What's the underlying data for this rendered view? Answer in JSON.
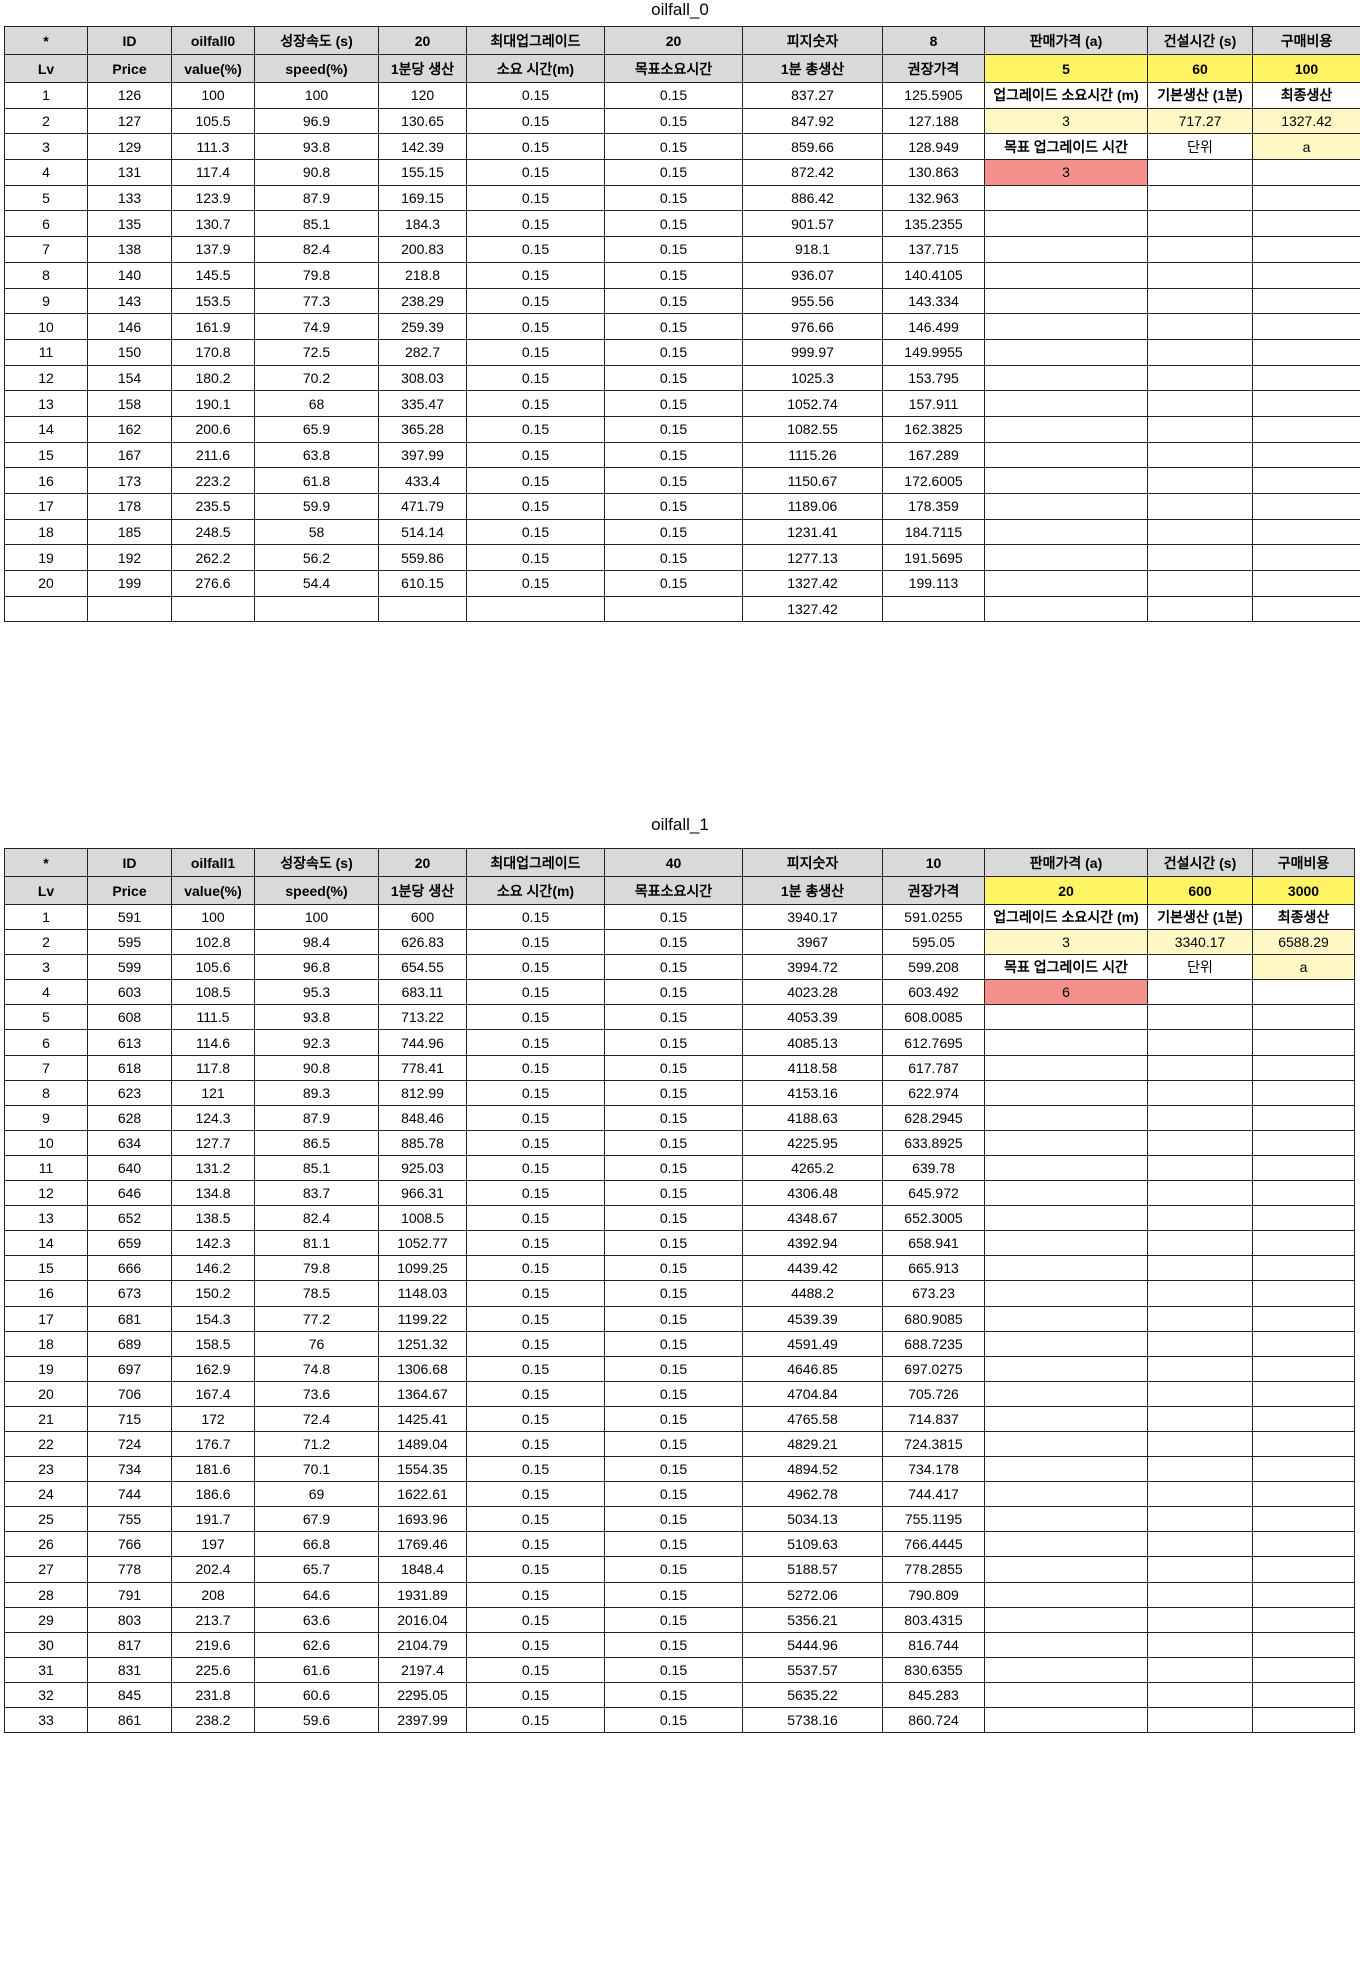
{
  "sheets": [
    {
      "title": "oilfall_0",
      "row1": [
        "*",
        "ID",
        "oilfall0",
        "성장속도 (s)",
        "20",
        "최대업그레이드",
        "20",
        "피지숫자",
        "8",
        "판매가격 (a)",
        "건설시간 (s)",
        "구매비용"
      ],
      "row2": [
        "Lv",
        "Price",
        "value(%)",
        "speed(%)",
        "1분당 생산",
        "소요 시간(m)",
        "목표소요시간",
        "1분 총생산",
        "권장가격",
        "5",
        "60",
        "100"
      ],
      "side": {
        "r1": [
          "업그레이드 소요시간 (m)",
          "기본생산 (1분)",
          "최종생산"
        ],
        "r2": [
          "3",
          "717.27",
          "1327.42"
        ],
        "r3": [
          "목표 업그레이드 시간",
          "단위",
          "a"
        ],
        "r4": [
          "3"
        ]
      },
      "rows": [
        [
          "1",
          "126",
          "100",
          "100",
          "120",
          "0.15",
          "0.15",
          "837.27",
          "125.5905"
        ],
        [
          "2",
          "127",
          "105.5",
          "96.9",
          "130.65",
          "0.15",
          "0.15",
          "847.92",
          "127.188"
        ],
        [
          "3",
          "129",
          "111.3",
          "93.8",
          "142.39",
          "0.15",
          "0.15",
          "859.66",
          "128.949"
        ],
        [
          "4",
          "131",
          "117.4",
          "90.8",
          "155.15",
          "0.15",
          "0.15",
          "872.42",
          "130.863"
        ],
        [
          "5",
          "133",
          "123.9",
          "87.9",
          "169.15",
          "0.15",
          "0.15",
          "886.42",
          "132.963"
        ],
        [
          "6",
          "135",
          "130.7",
          "85.1",
          "184.3",
          "0.15",
          "0.15",
          "901.57",
          "135.2355"
        ],
        [
          "7",
          "138",
          "137.9",
          "82.4",
          "200.83",
          "0.15",
          "0.15",
          "918.1",
          "137.715"
        ],
        [
          "8",
          "140",
          "145.5",
          "79.8",
          "218.8",
          "0.15",
          "0.15",
          "936.07",
          "140.4105"
        ],
        [
          "9",
          "143",
          "153.5",
          "77.3",
          "238.29",
          "0.15",
          "0.15",
          "955.56",
          "143.334"
        ],
        [
          "10",
          "146",
          "161.9",
          "74.9",
          "259.39",
          "0.15",
          "0.15",
          "976.66",
          "146.499"
        ],
        [
          "11",
          "150",
          "170.8",
          "72.5",
          "282.7",
          "0.15",
          "0.15",
          "999.97",
          "149.9955"
        ],
        [
          "12",
          "154",
          "180.2",
          "70.2",
          "308.03",
          "0.15",
          "0.15",
          "1025.3",
          "153.795"
        ],
        [
          "13",
          "158",
          "190.1",
          "68",
          "335.47",
          "0.15",
          "0.15",
          "1052.74",
          "157.911"
        ],
        [
          "14",
          "162",
          "200.6",
          "65.9",
          "365.28",
          "0.15",
          "0.15",
          "1082.55",
          "162.3825"
        ],
        [
          "15",
          "167",
          "211.6",
          "63.8",
          "397.99",
          "0.15",
          "0.15",
          "1115.26",
          "167.289"
        ],
        [
          "16",
          "173",
          "223.2",
          "61.8",
          "433.4",
          "0.15",
          "0.15",
          "1150.67",
          "172.6005"
        ],
        [
          "17",
          "178",
          "235.5",
          "59.9",
          "471.79",
          "0.15",
          "0.15",
          "1189.06",
          "178.359"
        ],
        [
          "18",
          "185",
          "248.5",
          "58",
          "514.14",
          "0.15",
          "0.15",
          "1231.41",
          "184.7115"
        ],
        [
          "19",
          "192",
          "262.2",
          "56.2",
          "559.86",
          "0.15",
          "0.15",
          "1277.13",
          "191.5695"
        ],
        [
          "20",
          "199",
          "276.6",
          "54.4",
          "610.15",
          "0.15",
          "0.15",
          "1327.42",
          "199.113"
        ],
        [
          "",
          "",
          "",
          "",
          "",
          "",
          "",
          "1327.42",
          ""
        ]
      ]
    },
    {
      "title": "oilfall_1",
      "row1": [
        "*",
        "ID",
        "oilfall1",
        "성장속도 (s)",
        "20",
        "최대업그레이드",
        "40",
        "피지숫자",
        "10",
        "판매가격 (a)",
        "건설시간 (s)",
        "구매비용"
      ],
      "row2": [
        "Lv",
        "Price",
        "value(%)",
        "speed(%)",
        "1분당 생산",
        "소요 시간(m)",
        "목표소요시간",
        "1분 총생산",
        "권장가격",
        "20",
        "600",
        "3000"
      ],
      "side": {
        "r1": [
          "업그레이드 소요시간 (m)",
          "기본생산 (1분)",
          "최종생산"
        ],
        "r2": [
          "3",
          "3340.17",
          "6588.29"
        ],
        "r3": [
          "목표 업그레이드 시간",
          "단위",
          "a"
        ],
        "r4": [
          "6"
        ]
      },
      "rows": [
        [
          "1",
          "591",
          "100",
          "100",
          "600",
          "0.15",
          "0.15",
          "3940.17",
          "591.0255"
        ],
        [
          "2",
          "595",
          "102.8",
          "98.4",
          "626.83",
          "0.15",
          "0.15",
          "3967",
          "595.05"
        ],
        [
          "3",
          "599",
          "105.6",
          "96.8",
          "654.55",
          "0.15",
          "0.15",
          "3994.72",
          "599.208"
        ],
        [
          "4",
          "603",
          "108.5",
          "95.3",
          "683.11",
          "0.15",
          "0.15",
          "4023.28",
          "603.492"
        ],
        [
          "5",
          "608",
          "111.5",
          "93.8",
          "713.22",
          "0.15",
          "0.15",
          "4053.39",
          "608.0085"
        ],
        [
          "6",
          "613",
          "114.6",
          "92.3",
          "744.96",
          "0.15",
          "0.15",
          "4085.13",
          "612.7695"
        ],
        [
          "7",
          "618",
          "117.8",
          "90.8",
          "778.41",
          "0.15",
          "0.15",
          "4118.58",
          "617.787"
        ],
        [
          "8",
          "623",
          "121",
          "89.3",
          "812.99",
          "0.15",
          "0.15",
          "4153.16",
          "622.974"
        ],
        [
          "9",
          "628",
          "124.3",
          "87.9",
          "848.46",
          "0.15",
          "0.15",
          "4188.63",
          "628.2945"
        ],
        [
          "10",
          "634",
          "127.7",
          "86.5",
          "885.78",
          "0.15",
          "0.15",
          "4225.95",
          "633.8925"
        ],
        [
          "11",
          "640",
          "131.2",
          "85.1",
          "925.03",
          "0.15",
          "0.15",
          "4265.2",
          "639.78"
        ],
        [
          "12",
          "646",
          "134.8",
          "83.7",
          "966.31",
          "0.15",
          "0.15",
          "4306.48",
          "645.972"
        ],
        [
          "13",
          "652",
          "138.5",
          "82.4",
          "1008.5",
          "0.15",
          "0.15",
          "4348.67",
          "652.3005"
        ],
        [
          "14",
          "659",
          "142.3",
          "81.1",
          "1052.77",
          "0.15",
          "0.15",
          "4392.94",
          "658.941"
        ],
        [
          "15",
          "666",
          "146.2",
          "79.8",
          "1099.25",
          "0.15",
          "0.15",
          "4439.42",
          "665.913"
        ],
        [
          "16",
          "673",
          "150.2",
          "78.5",
          "1148.03",
          "0.15",
          "0.15",
          "4488.2",
          "673.23"
        ],
        [
          "17",
          "681",
          "154.3",
          "77.2",
          "1199.22",
          "0.15",
          "0.15",
          "4539.39",
          "680.9085"
        ],
        [
          "18",
          "689",
          "158.5",
          "76",
          "1251.32",
          "0.15",
          "0.15",
          "4591.49",
          "688.7235"
        ],
        [
          "19",
          "697",
          "162.9",
          "74.8",
          "1306.68",
          "0.15",
          "0.15",
          "4646.85",
          "697.0275"
        ],
        [
          "20",
          "706",
          "167.4",
          "73.6",
          "1364.67",
          "0.15",
          "0.15",
          "4704.84",
          "705.726"
        ],
        [
          "21",
          "715",
          "172",
          "72.4",
          "1425.41",
          "0.15",
          "0.15",
          "4765.58",
          "714.837"
        ],
        [
          "22",
          "724",
          "176.7",
          "71.2",
          "1489.04",
          "0.15",
          "0.15",
          "4829.21",
          "724.3815"
        ],
        [
          "23",
          "734",
          "181.6",
          "70.1",
          "1554.35",
          "0.15",
          "0.15",
          "4894.52",
          "734.178"
        ],
        [
          "24",
          "744",
          "186.6",
          "69",
          "1622.61",
          "0.15",
          "0.15",
          "4962.78",
          "744.417"
        ],
        [
          "25",
          "755",
          "191.7",
          "67.9",
          "1693.96",
          "0.15",
          "0.15",
          "5034.13",
          "755.1195"
        ],
        [
          "26",
          "766",
          "197",
          "66.8",
          "1769.46",
          "0.15",
          "0.15",
          "5109.63",
          "766.4445"
        ],
        [
          "27",
          "778",
          "202.4",
          "65.7",
          "1848.4",
          "0.15",
          "0.15",
          "5188.57",
          "778.2855"
        ],
        [
          "28",
          "791",
          "208",
          "64.6",
          "1931.89",
          "0.15",
          "0.15",
          "5272.06",
          "790.809"
        ],
        [
          "29",
          "803",
          "213.7",
          "63.6",
          "2016.04",
          "0.15",
          "0.15",
          "5356.21",
          "803.4315"
        ],
        [
          "30",
          "817",
          "219.6",
          "62.6",
          "2104.79",
          "0.15",
          "0.15",
          "5444.96",
          "816.744"
        ],
        [
          "31",
          "831",
          "225.6",
          "61.6",
          "2197.4",
          "0.15",
          "0.15",
          "5537.57",
          "830.6355"
        ],
        [
          "32",
          "845",
          "231.8",
          "60.6",
          "2295.05",
          "0.15",
          "0.15",
          "5635.22",
          "845.283"
        ],
        [
          "33",
          "861",
          "238.2",
          "59.6",
          "2397.99",
          "0.15",
          "0.15",
          "5738.16",
          "860.724"
        ]
      ]
    }
  ],
  "colors": {
    "header_gray": "#d9d9d9",
    "yellow": "#fff463",
    "light_yellow": "#fff8c4",
    "red": "#f4918c",
    "border": "#222222"
  }
}
